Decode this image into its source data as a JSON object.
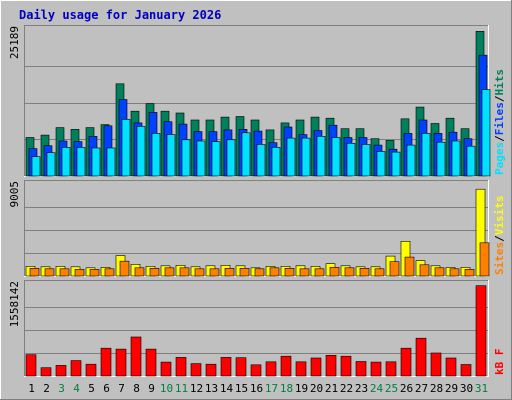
{
  "colors": {
    "frame_bg": "#c0c0c0",
    "plot_bg": "#c0c0c0",
    "title": "#0000c0",
    "hits": "#00805c",
    "files": "#0040ff",
    "pages": "#00e0ff",
    "visits": "#ffff00",
    "sites": "#ff8000",
    "kbytes": "#ff0000",
    "weekday_label": "#000000",
    "weekend_label": "#008040",
    "scale_label": "#000000"
  },
  "chart_data": {
    "type": "bar",
    "title": "Daily usage for January 2026",
    "categories": [
      "1",
      "2",
      "3",
      "4",
      "5",
      "6",
      "7",
      "8",
      "9",
      "10",
      "11",
      "12",
      "13",
      "14",
      "15",
      "16",
      "17",
      "18",
      "19",
      "20",
      "21",
      "22",
      "23",
      "24",
      "25",
      "26",
      "27",
      "28",
      "29",
      "30",
      "31"
    ],
    "weekend_days": [
      "3",
      "4",
      "10",
      "11",
      "17",
      "18",
      "24",
      "25",
      "31"
    ],
    "panels": [
      {
        "id": "hits-files-pages",
        "scale_label": "25189",
        "ymax": 25189,
        "legend": [
          {
            "text": "Pages",
            "color": "#00e0ff"
          },
          {
            "text": "/",
            "color": "#000000"
          },
          {
            "text": "Files",
            "color": "#0040ff"
          },
          {
            "text": "/",
            "color": "#000000"
          },
          {
            "text": "Hits",
            "color": "#00805c"
          }
        ],
        "series": [
          {
            "name": "Hits",
            "color": "#00805c",
            "values": [
              6600,
              7000,
              8300,
              8000,
              8300,
              8800,
              15800,
              11100,
              12400,
              11100,
              10800,
              9600,
              9600,
              10100,
              10200,
              9600,
              7900,
              9100,
              9600,
              10100,
              9900,
              8100,
              8100,
              6400,
              6100,
              9800,
              11800,
              9000,
              9900,
              8100,
              24800
            ]
          },
          {
            "name": "Files",
            "color": "#0040ff",
            "values": [
              4700,
              5200,
              6000,
              5900,
              6800,
              8600,
              13100,
              9100,
              10900,
              9300,
              8900,
              7600,
              7600,
              7900,
              8000,
              7700,
              5700,
              8400,
              7100,
              7800,
              8700,
              6600,
              6600,
              5300,
              4600,
              7300,
              9600,
              7300,
              7500,
              6400,
              20700
            ]
          },
          {
            "name": "Pages",
            "color": "#00e0ff",
            "values": [
              3300,
              4000,
              4900,
              4900,
              4800,
              4800,
              9700,
              8500,
              7300,
              7100,
              6200,
              6000,
              5900,
              6200,
              7400,
              5400,
              4900,
              6500,
              6500,
              6800,
              6600,
              5600,
              5400,
              4200,
              4100,
              5300,
              7300,
              5800,
              6000,
              5100,
              14800
            ]
          }
        ]
      },
      {
        "id": "visits-sites",
        "scale_label": "9005",
        "ymax": 9005,
        "legend": [
          {
            "text": "Sites",
            "color": "#ff8000"
          },
          {
            "text": "/",
            "color": "#000000"
          },
          {
            "text": "Visits",
            "color": "#ffff00"
          }
        ],
        "series": [
          {
            "name": "Visits",
            "color": "#ffff00",
            "values": [
              950,
              900,
              950,
              900,
              800,
              850,
              2000,
              1150,
              950,
              1000,
              1050,
              900,
              1000,
              1050,
              1000,
              800,
              950,
              950,
              1000,
              950,
              1200,
              1000,
              900,
              900,
              1950,
              3400,
              1500,
              1000,
              850,
              850,
              8500
            ]
          },
          {
            "name": "Sites",
            "color": "#ff8000",
            "values": [
              750,
              700,
              700,
              650,
              650,
              700,
              1450,
              800,
              750,
              800,
              800,
              700,
              700,
              750,
              750,
              700,
              800,
              750,
              700,
              700,
              850,
              800,
              750,
              700,
              1400,
              1850,
              1100,
              800,
              700,
              650,
              3250
            ]
          }
        ]
      },
      {
        "id": "kbytes",
        "scale_label": "1558142",
        "ymax": 1558142,
        "legend": [
          {
            "text": "kB F",
            "color": "#ff0000"
          }
        ],
        "series": [
          {
            "name": "kB F",
            "color": "#ff0000",
            "values": [
              360000,
              140000,
              180000,
              260000,
              200000,
              470000,
              455000,
              660000,
              455000,
              235000,
              315000,
              210000,
              200000,
              315000,
              310000,
              190000,
              240000,
              335000,
              240000,
              305000,
              350000,
              335000,
              245000,
              235000,
              240000,
              470000,
              640000,
              390000,
              305000,
              195000,
              1530000
            ]
          }
        ]
      }
    ]
  }
}
